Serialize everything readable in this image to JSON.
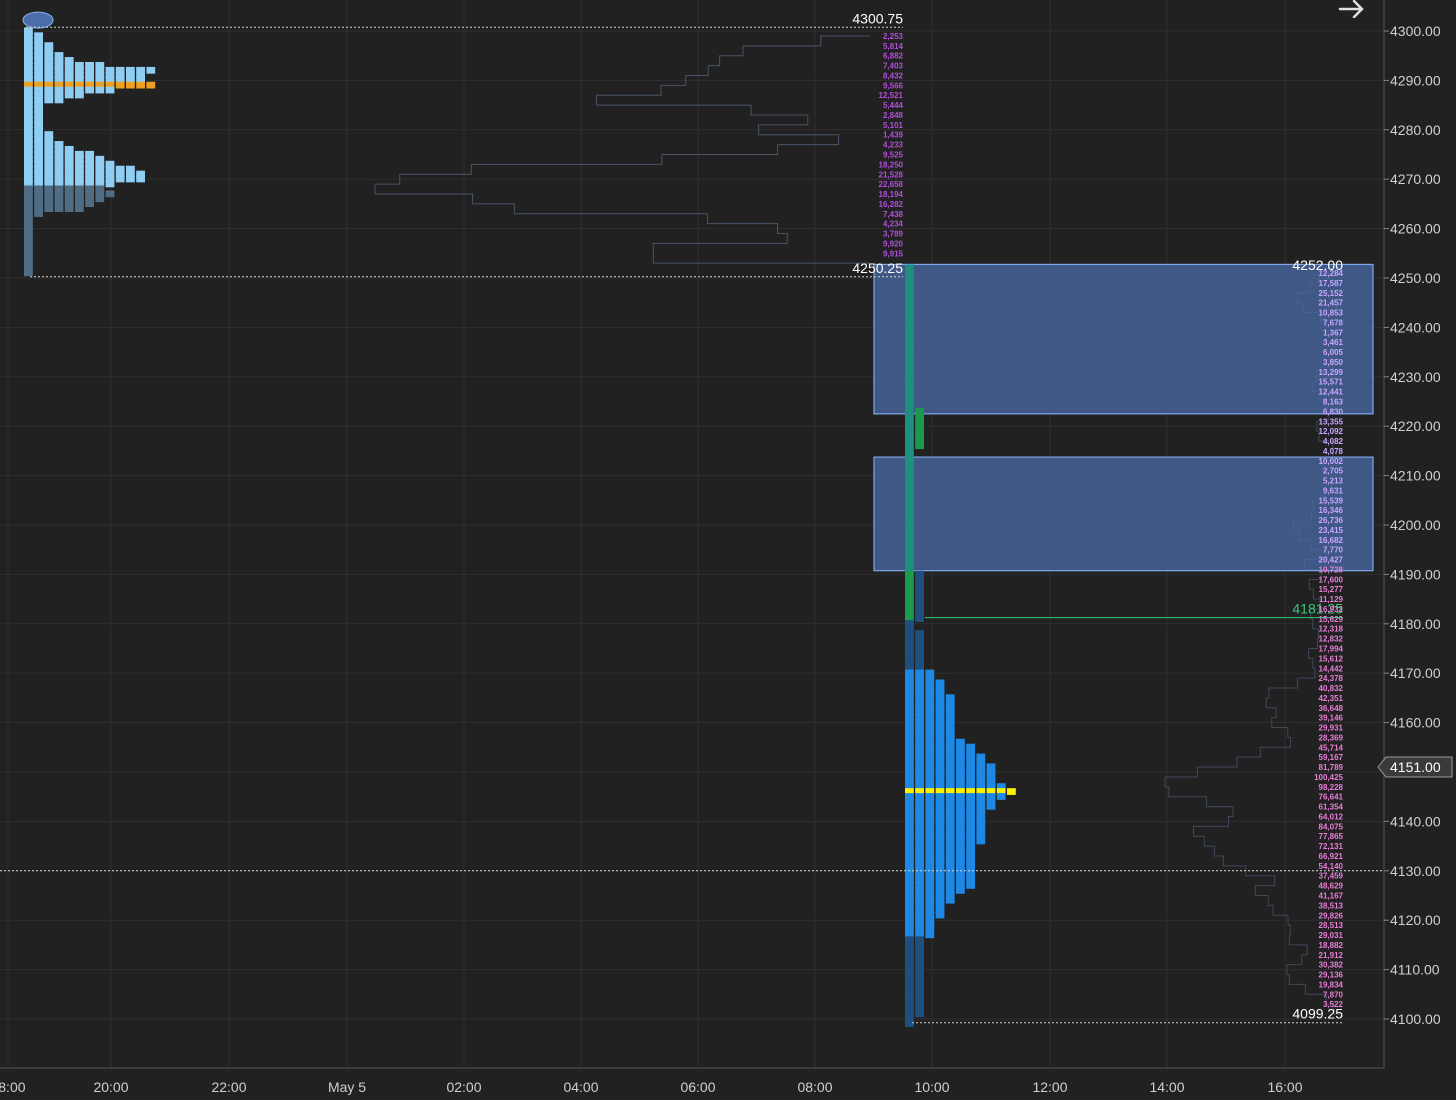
{
  "chart_data": {
    "type": "market-profile",
    "y_axis": {
      "range": [
        4097,
        4305
      ],
      "ticks": [
        "4300.00",
        "4290.00",
        "4280.00",
        "4270.00",
        "4260.00",
        "4250.00",
        "4240.00",
        "4230.00",
        "4220.00",
        "4210.00",
        "4200.00",
        "4190.00",
        "4180.00",
        "4170.00",
        "4160.00",
        "4150.00",
        "4140.00",
        "4130.00",
        "4120.00",
        "4110.00",
        "4100.00"
      ],
      "tick_values": [
        4300,
        4290,
        4280,
        4270,
        4260,
        4250,
        4240,
        4230,
        4220,
        4210,
        4200,
        4190,
        4180,
        4170,
        4160,
        4150,
        4140,
        4130,
        4120,
        4110,
        4100
      ]
    },
    "x_axis": {
      "ticks": [
        "18:00",
        "20:00",
        "22:00",
        "May 5",
        "02:00",
        "04:00",
        "06:00",
        "08:00",
        "10:00",
        "12:00",
        "14:00",
        "16:00"
      ]
    },
    "current_price": {
      "label": "4151.00",
      "value": 4151
    },
    "session_1": {
      "high_label": "4300.75",
      "high": 4300.75,
      "low_label": "4250.25",
      "low": 4250.25,
      "poc": 4289,
      "tpo_counts": [
        {
          "price": 4300,
          "count": 1
        },
        {
          "price": 4299,
          "count": 2
        },
        {
          "price": 4298,
          "count": 2
        },
        {
          "price": 4297,
          "count": 3
        },
        {
          "price": 4296,
          "count": 3
        },
        {
          "price": 4295,
          "count": 4
        },
        {
          "price": 4294,
          "count": 5
        },
        {
          "price": 4293,
          "count": 8
        },
        {
          "price": 4292,
          "count": 13
        },
        {
          "price": 4291,
          "count": 12
        },
        {
          "price": 4290,
          "count": 12
        },
        {
          "price": 4289,
          "count": 13
        },
        {
          "price": 4288,
          "count": 9
        },
        {
          "price": 4287,
          "count": 6
        },
        {
          "price": 4286,
          "count": 4
        },
        {
          "price": 4285,
          "count": 2
        },
        {
          "price": 4284,
          "count": 2
        },
        {
          "price": 4283,
          "count": 2
        },
        {
          "price": 4282,
          "count": 2
        },
        {
          "price": 4281,
          "count": 2
        },
        {
          "price": 4280,
          "count": 2
        },
        {
          "price": 4279,
          "count": 3
        },
        {
          "price": 4278,
          "count": 3
        },
        {
          "price": 4277,
          "count": 4
        },
        {
          "price": 4276,
          "count": 5
        },
        {
          "price": 4275,
          "count": 7
        },
        {
          "price": 4274,
          "count": 8
        },
        {
          "price": 4273,
          "count": 9
        },
        {
          "price": 4272,
          "count": 11
        },
        {
          "price": 4271,
          "count": 12
        },
        {
          "price": 4270,
          "count": 12
        },
        {
          "price": 4269,
          "count": 9
        },
        {
          "price": 4268,
          "count": 8
        },
        {
          "price": 4267,
          "count": 9
        },
        {
          "price": 4266,
          "count": 8
        },
        {
          "price": 4265,
          "count": 7
        },
        {
          "price": 4264,
          "count": 6
        },
        {
          "price": 4263,
          "count": 2
        },
        {
          "price": 4262,
          "count": 1
        },
        {
          "price": 4261,
          "count": 1
        },
        {
          "price": 4260,
          "count": 1
        },
        {
          "price": 4259,
          "count": 1
        },
        {
          "price": 4258,
          "count": 1
        },
        {
          "price": 4257,
          "count": 1
        },
        {
          "price": 4256,
          "count": 1
        },
        {
          "price": 4255,
          "count": 1
        },
        {
          "price": 4254,
          "count": 1
        },
        {
          "price": 4253,
          "count": 1
        },
        {
          "price": 4252,
          "count": 1
        },
        {
          "price": 4251,
          "count": 1
        }
      ],
      "volumes": [
        "2,253",
        "5,814",
        "6,882",
        "7,403",
        "8,432",
        "9,566",
        "12,521",
        "5,444",
        "2,848",
        "5,101",
        "1,439",
        "4,233",
        "9,525",
        "18,250",
        "21,528",
        "22,658",
        "18,194",
        "16,282",
        "7,438",
        "4,234",
        "3,789",
        "9,920",
        "9,915"
      ]
    },
    "session_2": {
      "high_label": "4252.00",
      "high": 4252,
      "low_label": "4099.25",
      "low": 4099.25,
      "ib_level_label": "4181.25",
      "ib_level": 4181.25,
      "poc": 4146,
      "tpo_counts": [
        {
          "price": 4252,
          "count": 1
        },
        {
          "price": 4251,
          "count": 1
        },
        {
          "price": 4250,
          "count": 1
        },
        {
          "price": 4249,
          "count": 1
        },
        {
          "price": 4248,
          "count": 1
        },
        {
          "price": 4247,
          "count": 1
        },
        {
          "price": 4246,
          "count": 1
        },
        {
          "price": 4245,
          "count": 1
        },
        {
          "price": 4244,
          "count": 1
        },
        {
          "price": 4243,
          "count": 1
        },
        {
          "price": 4242,
          "count": 1
        },
        {
          "price": 4241,
          "count": 1
        },
        {
          "price": 4240,
          "count": 1
        },
        {
          "price": 4239,
          "count": 1
        },
        {
          "price": 4238,
          "count": 1
        },
        {
          "price": 4237,
          "count": 1
        },
        {
          "price": 4236,
          "count": 1
        },
        {
          "price": 4235,
          "count": 1
        },
        {
          "price": 4234,
          "count": 1
        },
        {
          "price": 4233,
          "count": 1
        },
        {
          "price": 4232,
          "count": 1
        },
        {
          "price": 4231,
          "count": 1
        },
        {
          "price": 4230,
          "count": 1
        },
        {
          "price": 4229,
          "count": 1
        },
        {
          "price": 4228,
          "count": 1
        },
        {
          "price": 4227,
          "count": 1
        },
        {
          "price": 4226,
          "count": 1
        },
        {
          "price": 4225,
          "count": 1
        },
        {
          "price": 4224,
          "count": 1
        },
        {
          "price": 4223,
          "count": 2
        },
        {
          "price": 4222,
          "count": 2
        },
        {
          "price": 4221,
          "count": 2
        },
        {
          "price": 4220,
          "count": 2
        },
        {
          "price": 4219,
          "count": 2
        },
        {
          "price": 4218,
          "count": 2
        },
        {
          "price": 4217,
          "count": 2
        },
        {
          "price": 4216,
          "count": 2
        },
        {
          "price": 4215,
          "count": 1
        },
        {
          "price": 4214,
          "count": 1
        },
        {
          "price": 4213,
          "count": 1
        },
        {
          "price": 4212,
          "count": 1
        },
        {
          "price": 4211,
          "count": 1
        },
        {
          "price": 4210,
          "count": 1
        },
        {
          "price": 4209,
          "count": 1
        },
        {
          "price": 4208,
          "count": 1
        },
        {
          "price": 4207,
          "count": 1
        },
        {
          "price": 4206,
          "count": 1
        },
        {
          "price": 4205,
          "count": 1
        },
        {
          "price": 4204,
          "count": 1
        },
        {
          "price": 4203,
          "count": 1
        },
        {
          "price": 4202,
          "count": 1
        },
        {
          "price": 4201,
          "count": 1
        },
        {
          "price": 4200,
          "count": 1
        },
        {
          "price": 4199,
          "count": 1
        },
        {
          "price": 4198,
          "count": 1
        },
        {
          "price": 4197,
          "count": 1
        },
        {
          "price": 4196,
          "count": 1
        },
        {
          "price": 4195,
          "count": 1
        },
        {
          "price": 4194,
          "count": 1
        },
        {
          "price": 4193,
          "count": 1
        },
        {
          "price": 4192,
          "count": 1
        },
        {
          "price": 4191,
          "count": 1
        },
        {
          "price": 4190,
          "count": 2
        },
        {
          "price": 4189,
          "count": 2
        },
        {
          "price": 4188,
          "count": 2
        },
        {
          "price": 4187,
          "count": 2
        },
        {
          "price": 4186,
          "count": 2
        },
        {
          "price": 4185,
          "count": 2
        },
        {
          "price": 4184,
          "count": 2
        },
        {
          "price": 4183,
          "count": 2
        },
        {
          "price": 4182,
          "count": 2
        },
        {
          "price": 4181,
          "count": 2
        },
        {
          "price": 4180,
          "count": 1
        },
        {
          "price": 4179,
          "count": 1
        },
        {
          "price": 4178,
          "count": 2
        },
        {
          "price": 4177,
          "count": 2
        },
        {
          "price": 4176,
          "count": 2
        },
        {
          "price": 4175,
          "count": 2
        },
        {
          "price": 4174,
          "count": 2
        },
        {
          "price": 4173,
          "count": 2
        },
        {
          "price": 4172,
          "count": 2
        },
        {
          "price": 4171,
          "count": 2
        },
        {
          "price": 4170,
          "count": 3
        },
        {
          "price": 4169,
          "count": 3
        },
        {
          "price": 4168,
          "count": 4
        },
        {
          "price": 4167,
          "count": 4
        },
        {
          "price": 4166,
          "count": 4
        },
        {
          "price": 4165,
          "count": 5
        },
        {
          "price": 4164,
          "count": 5
        },
        {
          "price": 4163,
          "count": 5
        },
        {
          "price": 4162,
          "count": 5
        },
        {
          "price": 4161,
          "count": 5
        },
        {
          "price": 4160,
          "count": 5
        },
        {
          "price": 4159,
          "count": 5
        },
        {
          "price": 4158,
          "count": 5
        },
        {
          "price": 4157,
          "count": 5
        },
        {
          "price": 4156,
          "count": 6
        },
        {
          "price": 4155,
          "count": 7
        },
        {
          "price": 4154,
          "count": 7
        },
        {
          "price": 4153,
          "count": 8
        },
        {
          "price": 4152,
          "count": 8
        },
        {
          "price": 4151,
          "count": 9
        },
        {
          "price": 4150,
          "count": 9
        },
        {
          "price": 4149,
          "count": 9
        },
        {
          "price": 4148,
          "count": 9
        },
        {
          "price": 4147,
          "count": 10
        },
        {
          "price": 4146,
          "count": 11
        },
        {
          "price": 4145,
          "count": 10
        },
        {
          "price": 4144,
          "count": 9
        },
        {
          "price": 4143,
          "count": 9
        },
        {
          "price": 4142,
          "count": 8
        },
        {
          "price": 4141,
          "count": 8
        },
        {
          "price": 4140,
          "count": 8
        },
        {
          "price": 4139,
          "count": 8
        },
        {
          "price": 4138,
          "count": 8
        },
        {
          "price": 4137,
          "count": 8
        },
        {
          "price": 4136,
          "count": 8
        },
        {
          "price": 4135,
          "count": 7
        },
        {
          "price": 4134,
          "count": 7
        },
        {
          "price": 4133,
          "count": 7
        },
        {
          "price": 4132,
          "count": 7
        },
        {
          "price": 4131,
          "count": 7
        },
        {
          "price": 4130,
          "count": 7
        },
        {
          "price": 4129,
          "count": 7
        },
        {
          "price": 4128,
          "count": 7
        },
        {
          "price": 4127,
          "count": 7
        },
        {
          "price": 4126,
          "count": 6
        },
        {
          "price": 4125,
          "count": 5
        },
        {
          "price": 4124,
          "count": 5
        },
        {
          "price": 4123,
          "count": 4
        },
        {
          "price": 4122,
          "count": 4
        },
        {
          "price": 4121,
          "count": 4
        },
        {
          "price": 4120,
          "count": 3
        },
        {
          "price": 4119,
          "count": 3
        },
        {
          "price": 4118,
          "count": 3
        },
        {
          "price": 4117,
          "count": 3
        },
        {
          "price": 4116,
          "count": 2
        },
        {
          "price": 4115,
          "count": 2
        },
        {
          "price": 4114,
          "count": 2
        },
        {
          "price": 4113,
          "count": 2
        },
        {
          "price": 4112,
          "count": 2
        },
        {
          "price": 4111,
          "count": 2
        },
        {
          "price": 4110,
          "count": 2
        },
        {
          "price": 4109,
          "count": 2
        },
        {
          "price": 4108,
          "count": 2
        },
        {
          "price": 4107,
          "count": 2
        },
        {
          "price": 4106,
          "count": 2
        },
        {
          "price": 4105,
          "count": 2
        },
        {
          "price": 4104,
          "count": 2
        },
        {
          "price": 4103,
          "count": 2
        },
        {
          "price": 4102,
          "count": 2
        },
        {
          "price": 4101,
          "count": 2
        },
        {
          "price": 4100,
          "count": 1
        },
        {
          "price": 4099,
          "count": 1
        }
      ],
      "value_area_boxes": [
        {
          "top": 4252.75,
          "bottom": 4222.5
        },
        {
          "top": 4213.75,
          "bottom": 4190.75
        }
      ],
      "volumes": [
        "12,284",
        "17,587",
        "25,152",
        "21,457",
        "10,853",
        "7,678",
        "1,367",
        "3,461",
        "6,005",
        "3,850",
        "13,299",
        "15,571",
        "12,441",
        "8,163",
        "6,830",
        "13,355",
        "12,092",
        "4,082",
        "4,078",
        "10,002",
        "2,705",
        "5,213",
        "9,631",
        "15,539",
        "16,346",
        "26,736",
        "23,415",
        "16,682",
        "7,770",
        "20,427",
        "10,728",
        "17,600",
        "15,277",
        "11,129",
        "16,932",
        "15,629",
        "12,318",
        "12,832",
        "17,994",
        "15,612",
        "14,442",
        "24,378",
        "40,832",
        "42,351",
        "36,648",
        "39,146",
        "29,931",
        "28,369",
        "45,714",
        "59,167",
        "81,789",
        "100,425",
        "98,228",
        "76,641",
        "61,354",
        "64,012",
        "84,075",
        "77,865",
        "72,131",
        "66,921",
        "54,140",
        "37,459",
        "48,629",
        "41,167",
        "38,513",
        "29,826",
        "28,513",
        "29,031",
        "18,882",
        "21,912",
        "30,382",
        "29,136",
        "19,834",
        "7,870",
        "3,522"
      ]
    },
    "horizontal_line_price": 4130,
    "colors": {
      "background": "#212121",
      "grid": "#2f2f2f",
      "session1_upper_tpo": "#8fcdf2",
      "session1_lower_tpo": "#4f6c83",
      "session1_poc": "#f0a020",
      "session2_teal_tpo": "#1f8f7f",
      "session2_green_tpo": "#1a9a4a",
      "session2_dark_tpo": "#1f4f7f",
      "session2_tpo": "#1e88e5",
      "session2_poc": "#fff200",
      "value_area_fill": "#4a6ba8",
      "value_area_border": "#7fa8ea",
      "volume_text_session1": "#b04fd8",
      "volume_text_session2": "#e87ed8",
      "ib_line": "#2ecc71",
      "level_label": "#ffffff",
      "price_tag": "#3a3a3a"
    }
  }
}
